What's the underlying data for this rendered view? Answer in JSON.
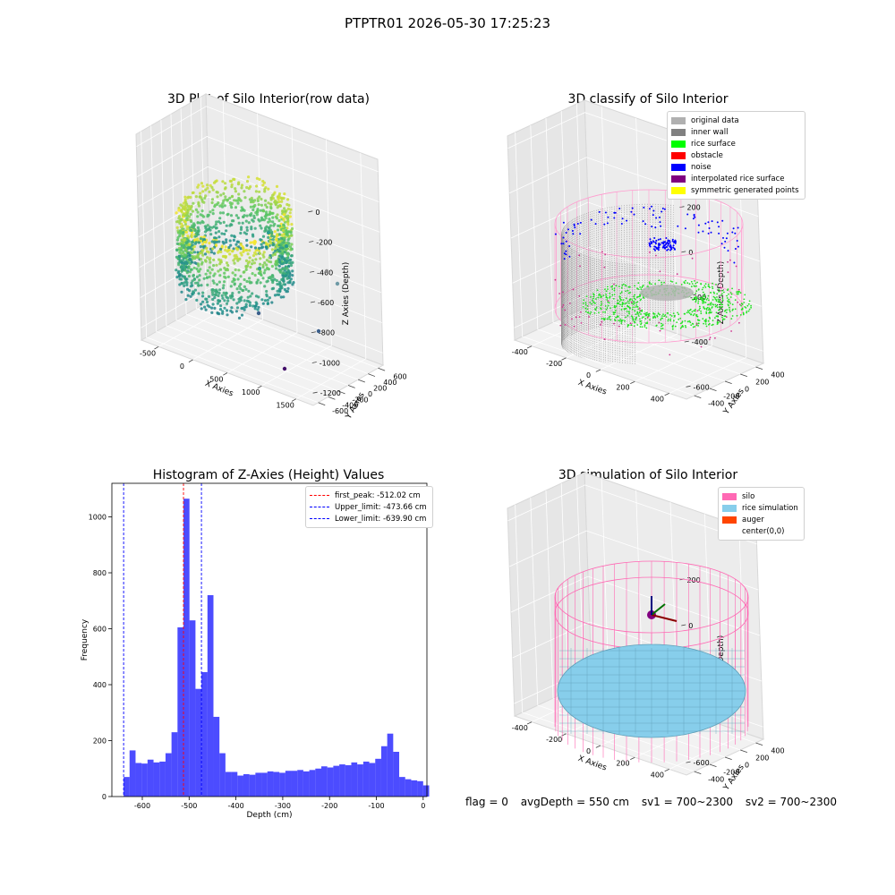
{
  "suptitle": "PTPTR01 2026-05-30 17:25:23",
  "chart_data": [
    {
      "type": "scatter3d",
      "title": "3D Plot of Silo Interior(row data)",
      "xlabel": "X Axies",
      "ylabel": "Y Axies",
      "zlabel": "Z Axies (Depth)",
      "xticks": [
        -500,
        0,
        500,
        1000,
        1500
      ],
      "yticks": [
        -600,
        -400,
        -200,
        0,
        200,
        400,
        600
      ],
      "zticks": [
        0,
        -200,
        -400,
        -600,
        -800,
        -1000,
        -1200
      ],
      "colormap": "viridis"
    },
    {
      "type": "scatter3d",
      "title": "3D classify of Silo Interior",
      "xlabel": "X Axies",
      "ylabel": "Y Axies",
      "zlabel": "Z Axies (Depth)",
      "xticks": [
        -400,
        -200,
        0,
        200,
        400
      ],
      "yticks": [
        -400,
        -200,
        0,
        200,
        400
      ],
      "zticks": [
        200,
        0,
        -200,
        -400,
        -600
      ],
      "legend_position": "top-right",
      "legend": [
        {
          "label": "original data",
          "color": "#b0b0b0"
        },
        {
          "label": "inner wall",
          "color": "#808080"
        },
        {
          "label": "rice surface",
          "color": "#00ff00"
        },
        {
          "label": "obstacle",
          "color": "#ff0000"
        },
        {
          "label": "noise",
          "color": "#0000ff"
        },
        {
          "label": "interpolated rice surface",
          "color": "#800080"
        },
        {
          "label": "symmetric generated points",
          "color": "#ffff00"
        }
      ]
    },
    {
      "type": "bar",
      "title": "Histogram of Z-Axies (Height) Values",
      "xlabel": "Depth (cm)",
      "ylabel": "Frequency",
      "xlim": [
        -665,
        8
      ],
      "ylim": [
        0,
        1120
      ],
      "xticks": [
        -600,
        -500,
        -400,
        -300,
        -200,
        -100,
        0
      ],
      "yticks": [
        0,
        200,
        400,
        600,
        800,
        1000
      ],
      "bin_width": 12.8,
      "bins_start": -640,
      "values": [
        70,
        165,
        120,
        118,
        132,
        122,
        125,
        155,
        230,
        605,
        1065,
        630,
        385,
        445,
        720,
        285,
        155,
        88,
        88,
        75,
        80,
        78,
        85,
        85,
        90,
        88,
        85,
        92,
        92,
        95,
        90,
        95,
        100,
        108,
        104,
        110,
        115,
        112,
        122,
        115,
        125,
        120,
        135,
        180,
        225,
        160,
        70,
        62,
        58,
        55,
        40
      ],
      "bar_color": "#0000ff",
      "legend_position": "top-right",
      "lines": [
        {
          "label": "first_peak: -512.02 cm",
          "value": -512.02,
          "color": "#ff0000"
        },
        {
          "label": "Upper_limit: -473.66 cm",
          "value": -473.66,
          "color": "#0000ff"
        },
        {
          "label": "Lower_limit: -639.90 cm",
          "value": -639.9,
          "color": "#0000ff"
        }
      ]
    },
    {
      "type": "surface3d",
      "title": "3D simulation of Silo Interior",
      "xlabel": "X Axies",
      "ylabel": "Y Axies",
      "zlabel": "Z Axies (Depth)",
      "xticks": [
        -400,
        -200,
        0,
        200,
        400
      ],
      "yticks": [
        -400,
        -200,
        0,
        200,
        400
      ],
      "zticks": [
        200,
        0,
        -200,
        -400,
        -600
      ],
      "legend_position": "top-right",
      "legend": [
        {
          "label": "silo",
          "color": "#ff69b4"
        },
        {
          "label": "rice simulation",
          "color": "#87ceeb"
        },
        {
          "label": "auger",
          "color": "#ff4500"
        },
        {
          "label": "center(0,0)",
          "color": "#ffffff"
        }
      ]
    }
  ],
  "footer": {
    "flag": "flag = 0",
    "avg_depth": "avgDepth = 550 cm",
    "sv1": "sv1 = 700~2300",
    "sv2": "sv2 = 700~2300"
  }
}
